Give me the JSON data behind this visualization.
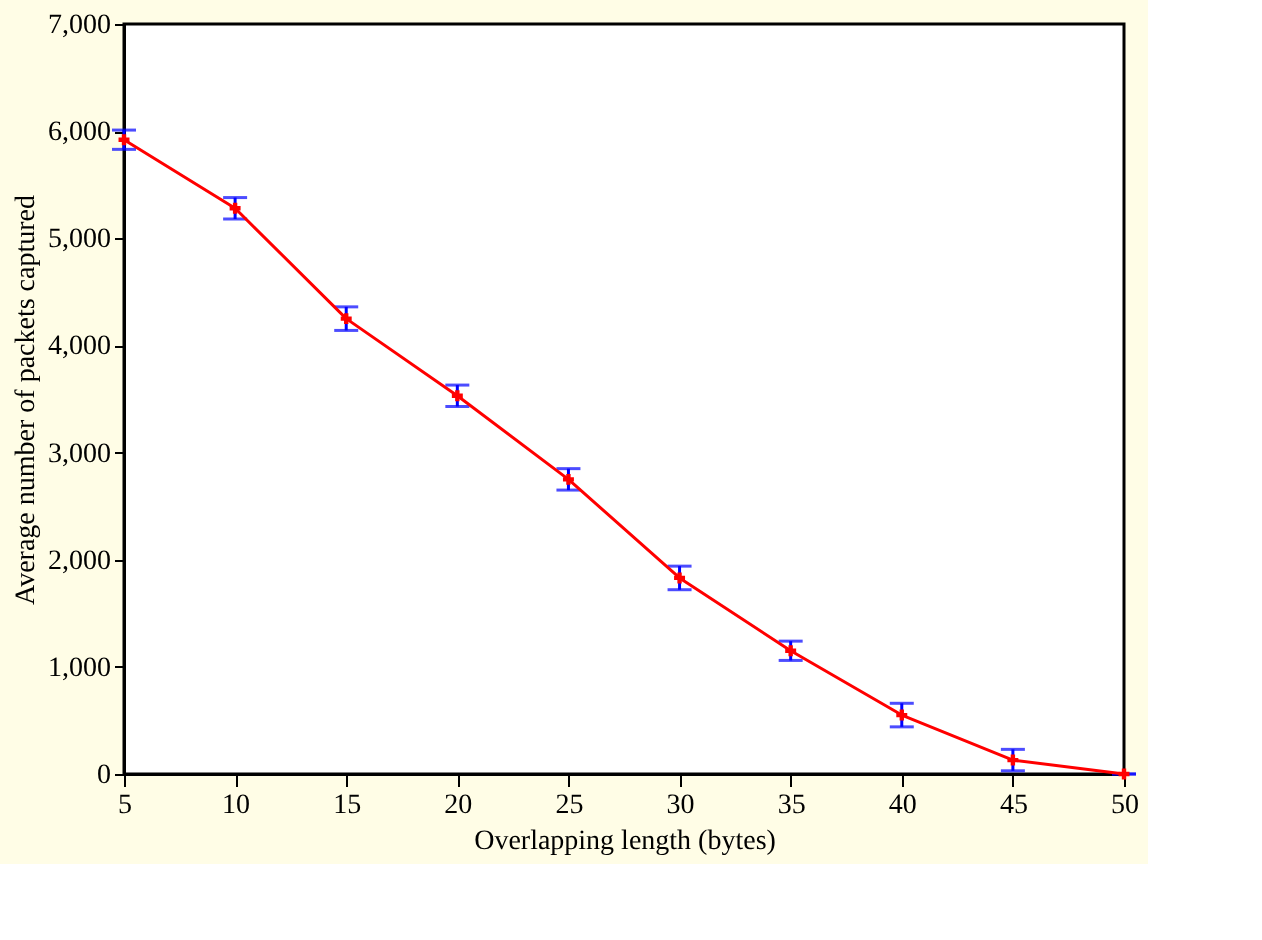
{
  "chart_data": {
    "type": "line",
    "xlabel": "Overlapping length (bytes)",
    "ylabel": "Average number of packets captured",
    "x": [
      5,
      10,
      15,
      20,
      25,
      30,
      35,
      40,
      45,
      50
    ],
    "series": [
      {
        "color": "#ff0000",
        "values": [
          5920,
          5280,
          4250,
          3530,
          2750,
          1830,
          1150,
          550,
          130,
          0
        ],
        "errors": [
          90,
          100,
          110,
          100,
          100,
          110,
          90,
          110,
          100,
          0
        ]
      }
    ],
    "xlim": [
      5,
      50
    ],
    "xticks": [
      5,
      10,
      15,
      20,
      25,
      30,
      35,
      40,
      45,
      50
    ],
    "ylim": [
      0,
      7000
    ],
    "yticks": [
      {
        "value": 0,
        "label": "0"
      },
      {
        "value": 1000,
        "label": "1,000"
      },
      {
        "value": 2000,
        "label": "2,000"
      },
      {
        "value": 3000,
        "label": "3,000"
      },
      {
        "value": 4000,
        "label": "4,000"
      },
      {
        "value": 5000,
        "label": "5,000"
      },
      {
        "value": 6000,
        "label": "6,000"
      },
      {
        "value": 7000,
        "label": "7,000"
      }
    ],
    "marker": "cross",
    "line_style": "solid"
  }
}
